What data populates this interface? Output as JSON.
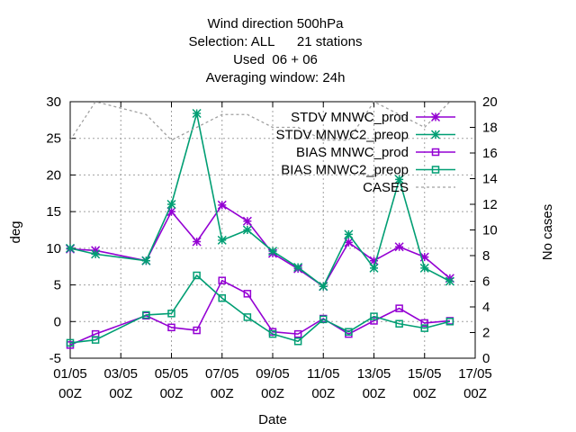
{
  "chart_data": {
    "type": "line",
    "title_lines": [
      "Wind direction 500hPa",
      "Selection: ALL      21 stations",
      "Used  06 + 06",
      "Averaging window: 24h"
    ],
    "xlabel": "Date",
    "ylabel": "deg",
    "y2label": "No cases",
    "xlim": [
      0,
      16
    ],
    "ylim": [
      -5,
      30
    ],
    "y2lim": [
      0,
      20
    ],
    "x_ticks": [
      {
        "x": 0,
        "line1": "01/05",
        "line2": "00Z"
      },
      {
        "x": 2,
        "line1": "03/05",
        "line2": "00Z"
      },
      {
        "x": 4,
        "line1": "05/05",
        "line2": "00Z"
      },
      {
        "x": 6,
        "line1": "07/05",
        "line2": "00Z"
      },
      {
        "x": 8,
        "line1": "09/05",
        "line2": "00Z"
      },
      {
        "x": 10,
        "line1": "11/05",
        "line2": "00Z"
      },
      {
        "x": 12,
        "line1": "13/05",
        "line2": "00Z"
      },
      {
        "x": 14,
        "line1": "15/05",
        "line2": "00Z"
      },
      {
        "x": 16,
        "line1": "17/05",
        "line2": "00Z"
      }
    ],
    "y_ticks": [
      -5,
      0,
      5,
      10,
      15,
      20,
      25,
      30
    ],
    "y_tick_labels": [
      "-5",
      "0",
      "5",
      "10",
      "15",
      "20",
      "25",
      "30"
    ],
    "y2_ticks": [
      0,
      2,
      4,
      6,
      8,
      10,
      12,
      14,
      16,
      18,
      20
    ],
    "y2_tick_labels": [
      "0",
      "2",
      "4",
      "6",
      "8",
      "10",
      "12",
      "14",
      "16",
      "18",
      "20"
    ],
    "grid": true,
    "legend_position": "top-right",
    "series": [
      {
        "name": "STDV MNWC_prod",
        "color": "#9400d3",
        "marker": "star",
        "axis": "y",
        "x": [
          0,
          1,
          3,
          4,
          5,
          6,
          7,
          8,
          9,
          10,
          11,
          12,
          13,
          14,
          15
        ],
        "y": [
          9.9,
          9.7,
          8.3,
          15.0,
          10.9,
          15.9,
          13.7,
          9.3,
          7.2,
          4.8,
          10.8,
          8.3,
          10.2,
          8.8,
          5.9
        ]
      },
      {
        "name": "STDV MNWC2_preop",
        "color": "#009e73",
        "marker": "star",
        "axis": "y",
        "x": [
          0,
          1,
          3,
          4,
          5,
          6,
          7,
          8,
          9,
          10,
          11,
          12,
          13,
          14,
          15
        ],
        "y": [
          10.0,
          9.2,
          8.3,
          16.0,
          28.4,
          11.1,
          12.5,
          9.6,
          7.4,
          4.8,
          11.9,
          7.3,
          19.4,
          7.3,
          5.5
        ]
      },
      {
        "name": "BIAS MNWC_prod",
        "color": "#9400d3",
        "marker": "square",
        "axis": "y",
        "x": [
          0,
          1,
          3,
          4,
          5,
          6,
          7,
          8,
          9,
          10,
          11,
          12,
          13,
          14,
          15
        ],
        "y": [
          -3.2,
          -1.7,
          0.8,
          -0.8,
          -1.2,
          5.6,
          3.8,
          -1.4,
          -1.7,
          0.4,
          -1.7,
          0.1,
          1.8,
          -0.2,
          0.1
        ]
      },
      {
        "name": "BIAS MNWC2_preop",
        "color": "#009e73",
        "marker": "square",
        "axis": "y",
        "x": [
          0,
          1,
          3,
          4,
          5,
          6,
          7,
          8,
          9,
          10,
          11,
          12,
          13,
          14,
          15
        ],
        "y": [
          -2.9,
          -2.5,
          0.9,
          1.1,
          6.3,
          3.2,
          0.6,
          -1.7,
          -2.7,
          0.3,
          -1.4,
          0.7,
          -0.3,
          -0.9,
          0.0
        ]
      },
      {
        "name": "CASES",
        "color": "#a0a0a0",
        "marker": "none",
        "dashed": true,
        "axis": "y2",
        "x": [
          0,
          1,
          2,
          3,
          4,
          5,
          6,
          7,
          8,
          9,
          10,
          11,
          12,
          13,
          14,
          15
        ],
        "y": [
          17,
          20,
          19.5,
          19,
          17,
          18,
          19,
          19,
          18,
          18,
          17,
          17,
          20,
          19,
          18,
          20
        ]
      }
    ]
  }
}
